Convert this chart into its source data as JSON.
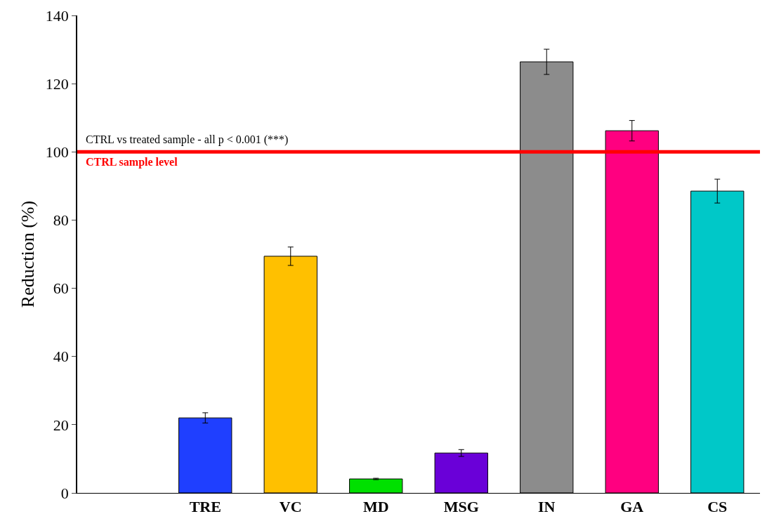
{
  "chart_data": {
    "type": "bar",
    "ylabel": "Reduction (%)",
    "categories": [
      null,
      "TRE",
      "VC",
      "MD",
      "MSG",
      "IN",
      "GA",
      "CS"
    ],
    "values": [
      null,
      22.0,
      69.4,
      4.1,
      11.7,
      126.4,
      106.2,
      88.5
    ],
    "colors": [
      "#1f3fff",
      "#1f3fff",
      "#ffc000",
      "#00e000",
      "#6a00d8",
      "#8c8c8c",
      "#ff0080",
      "#00c8c8"
    ],
    "errors": [
      null,
      1.5,
      2.7,
      0.2,
      1.0,
      3.7,
      3.0,
      3.5
    ],
    "ylim": [
      0,
      140
    ],
    "yticks": [
      0,
      20,
      40,
      60,
      80,
      100,
      120,
      140
    ],
    "grid": false,
    "ref_lines": [
      {
        "axis": "y",
        "value": 100,
        "label": "CTRL sample level",
        "color": "#ff0000",
        "line_style": "solid"
      }
    ],
    "annotations": [
      "CTRL vs treated sample - all p < 0.001 (***)"
    ]
  }
}
